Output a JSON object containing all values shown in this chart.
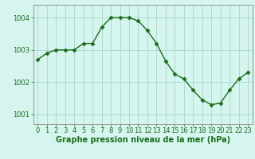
{
  "x": [
    0,
    1,
    2,
    3,
    4,
    5,
    6,
    7,
    8,
    9,
    10,
    11,
    12,
    13,
    14,
    15,
    16,
    17,
    18,
    19,
    20,
    21,
    22,
    23
  ],
  "y": [
    1002.7,
    1002.9,
    1003.0,
    1003.0,
    1003.0,
    1003.2,
    1003.2,
    1003.7,
    1004.0,
    1004.0,
    1004.0,
    1003.9,
    1003.6,
    1003.2,
    1002.65,
    1002.25,
    1002.1,
    1001.75,
    1001.45,
    1001.3,
    1001.35,
    1001.75,
    1002.1,
    1002.3
  ],
  "line_color": "#1a6e1a",
  "marker": "D",
  "markersize": 2.5,
  "linewidth": 1.0,
  "bg_color": "#d5f5ee",
  "grid_color": "#aaddcc",
  "xlabel": "Graphe pression niveau de la mer (hPa)",
  "xlabel_fontsize": 7.0,
  "xlabel_fontweight": "bold",
  "xlabel_color": "#1a6e1a",
  "tick_color": "#1a6e1a",
  "tick_fontsize": 6.0,
  "yticks": [
    1001,
    1002,
    1003,
    1004
  ],
  "ylim": [
    1000.7,
    1004.4
  ],
  "xlim": [
    -0.5,
    23.5
  ],
  "xtick_labels": [
    "0",
    "1",
    "2",
    "3",
    "4",
    "5",
    "6",
    "7",
    "8",
    "9",
    "10",
    "11",
    "12",
    "13",
    "14",
    "15",
    "16",
    "17",
    "18",
    "19",
    "20",
    "21",
    "22",
    "23"
  ]
}
